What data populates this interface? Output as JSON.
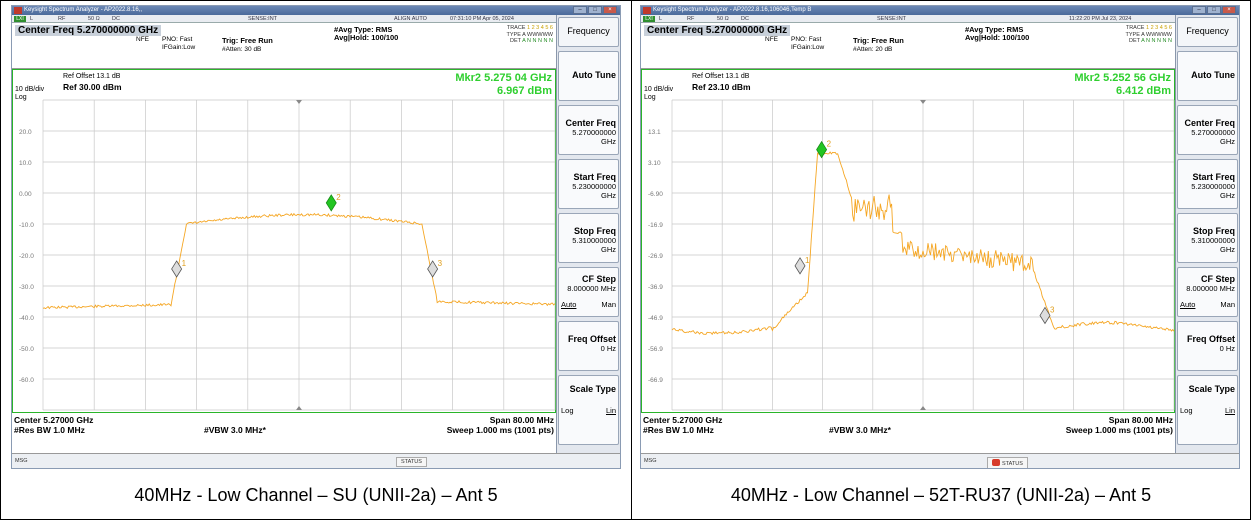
{
  "panels": [
    {
      "window_title": "Keysight Spectrum Analyzer - AP2022.8.16,,",
      "status": {
        "rf": "RF",
        "imp": "50 Ω",
        "dc": "DC",
        "sense": "SENSE:INT",
        "align": "ALIGN AUTO",
        "datetime": "07:31:10 PM Apr 05, 2024",
        "l": "L"
      },
      "center_freq_label": "Center Freq 5.270000000 GHz",
      "nfe": "NFE",
      "pno": "PNO: Fast",
      "ifgain": "IFGain:Low",
      "trig": "Trig: Free Run",
      "atten": "#Atten: 30 dB",
      "avg_type": "#Avg Type: RMS",
      "avg_hold": "Avg|Hold: 100/100",
      "trace": {
        "l1": "TRACE",
        "l1v": "1 2 3 4 5 6",
        "l2": "TYPE",
        "l2v": "A WWWWW",
        "l3": "DET",
        "l3v": "A N N N N N"
      },
      "ref_offset": "Ref Offset 13.1 dB",
      "div": "10 dB/div",
      "log": "Log",
      "ref_level": "Ref 30.00 dBm",
      "marker_freq": "Mkr2 5.275 04 GHz",
      "marker_level": "6.967 dBm",
      "y_labels": [
        "20.0",
        "10.0",
        "0.00",
        "-10.0",
        "-20.0",
        "-30.0",
        "-40.0",
        "-50.0",
        "-60.0"
      ],
      "markers": [
        "1",
        "2",
        "3"
      ],
      "center_label": "Center 5.27000 GHz",
      "rbw": "#Res BW 1.0 MHz",
      "vbw": "#VBW 3.0 MHz*",
      "span": "Span 80.00 MHz",
      "sweep": "Sweep  1.000 ms (1001 pts)",
      "msg": "MSG",
      "statusbtn": "STATUS",
      "softkeys": {
        "title": "Frequency",
        "auto_tune": "Auto Tune",
        "center_freq": "Center Freq",
        "center_freq_v": "5.270000000 GHz",
        "start_freq": "Start Freq",
        "start_freq_v": "5.230000000 GHz",
        "stop_freq": "Stop Freq",
        "stop_freq_v": "5.310000000 GHz",
        "cf_step": "CF Step",
        "cf_step_v": "8.000000 MHz",
        "auto": "Auto",
        "man": "Man",
        "freq_offset": "Freq Offset",
        "freq_offset_v": "0 Hz",
        "scale_type": "Scale Type",
        "log": "Log",
        "lin": "Lin"
      },
      "caption": "40MHz - Low Channel – SU (UNII-2a) – Ant 5"
    },
    {
      "window_title": "Keysight Spectrum Analyzer - AP2022.8.16,106046,Temp B",
      "status": {
        "rf": "RF",
        "imp": "50 Ω",
        "dc": "DC",
        "sense": "SENSE:INT",
        "align": "",
        "datetime": "11:22:20 PM Jul 23, 2024",
        "l": "L"
      },
      "center_freq_label": "Center Freq 5.270000000 GHz",
      "nfe": "NFE",
      "pno": "PNO: Fast",
      "ifgain": "IFGain:Low",
      "trig": "Trig: Free Run",
      "atten": "#Atten: 20 dB",
      "avg_type": "#Avg Type: RMS",
      "avg_hold": "Avg|Hold: 100/100",
      "trace": {
        "l1": "TRACE",
        "l1v": "1 2 3 4 5 6",
        "l2": "TYPE",
        "l2v": "A WWWWW",
        "l3": "DET",
        "l3v": "A N N N N N"
      },
      "ref_offset": "Ref Offset 13.1 dB",
      "div": "10 dB/div",
      "log": "Log",
      "ref_level": "Ref 23.10 dBm",
      "marker_freq": "Mkr2 5.252 56 GHz",
      "marker_level": "6.412 dBm",
      "y_labels": [
        "13.1",
        "3.10",
        "-6.90",
        "-16.9",
        "-26.9",
        "-36.9",
        "-46.9",
        "-56.9",
        "-66.9"
      ],
      "markers": [
        "1",
        "2",
        "3"
      ],
      "center_label": "Center 5.27000 GHz",
      "rbw": "#Res BW 1.0 MHz",
      "vbw": "#VBW 3.0 MHz*",
      "span": "Span 80.00 MHz",
      "sweep": "Sweep  1.000 ms (1001 pts)",
      "msg": "MSG",
      "statusbtn": "STATUS",
      "softkeys": {
        "title": "Frequency",
        "auto_tune": "Auto Tune",
        "center_freq": "Center Freq",
        "center_freq_v": "5.270000000 GHz",
        "start_freq": "Start Freq",
        "start_freq_v": "5.230000000 GHz",
        "stop_freq": "Stop Freq",
        "stop_freq_v": "5.310000000 GHz",
        "cf_step": "CF Step",
        "cf_step_v": "8.000000 MHz",
        "auto": "Auto",
        "man": "Man",
        "freq_offset": "Freq Offset",
        "freq_offset_v": "0 Hz",
        "scale_type": "Scale Type",
        "log": "Log",
        "lin": "Lin"
      },
      "caption": "40MHz - Low Channel – 52T-RU37 (UNII-2a) – Ant 5"
    }
  ],
  "colors": {
    "trace": "#f5a623",
    "marker_active": "#22c522",
    "marker_inactive": "#dddddd",
    "grid": "#c8c8c8",
    "marker_readout": "#2fcf2f"
  }
}
